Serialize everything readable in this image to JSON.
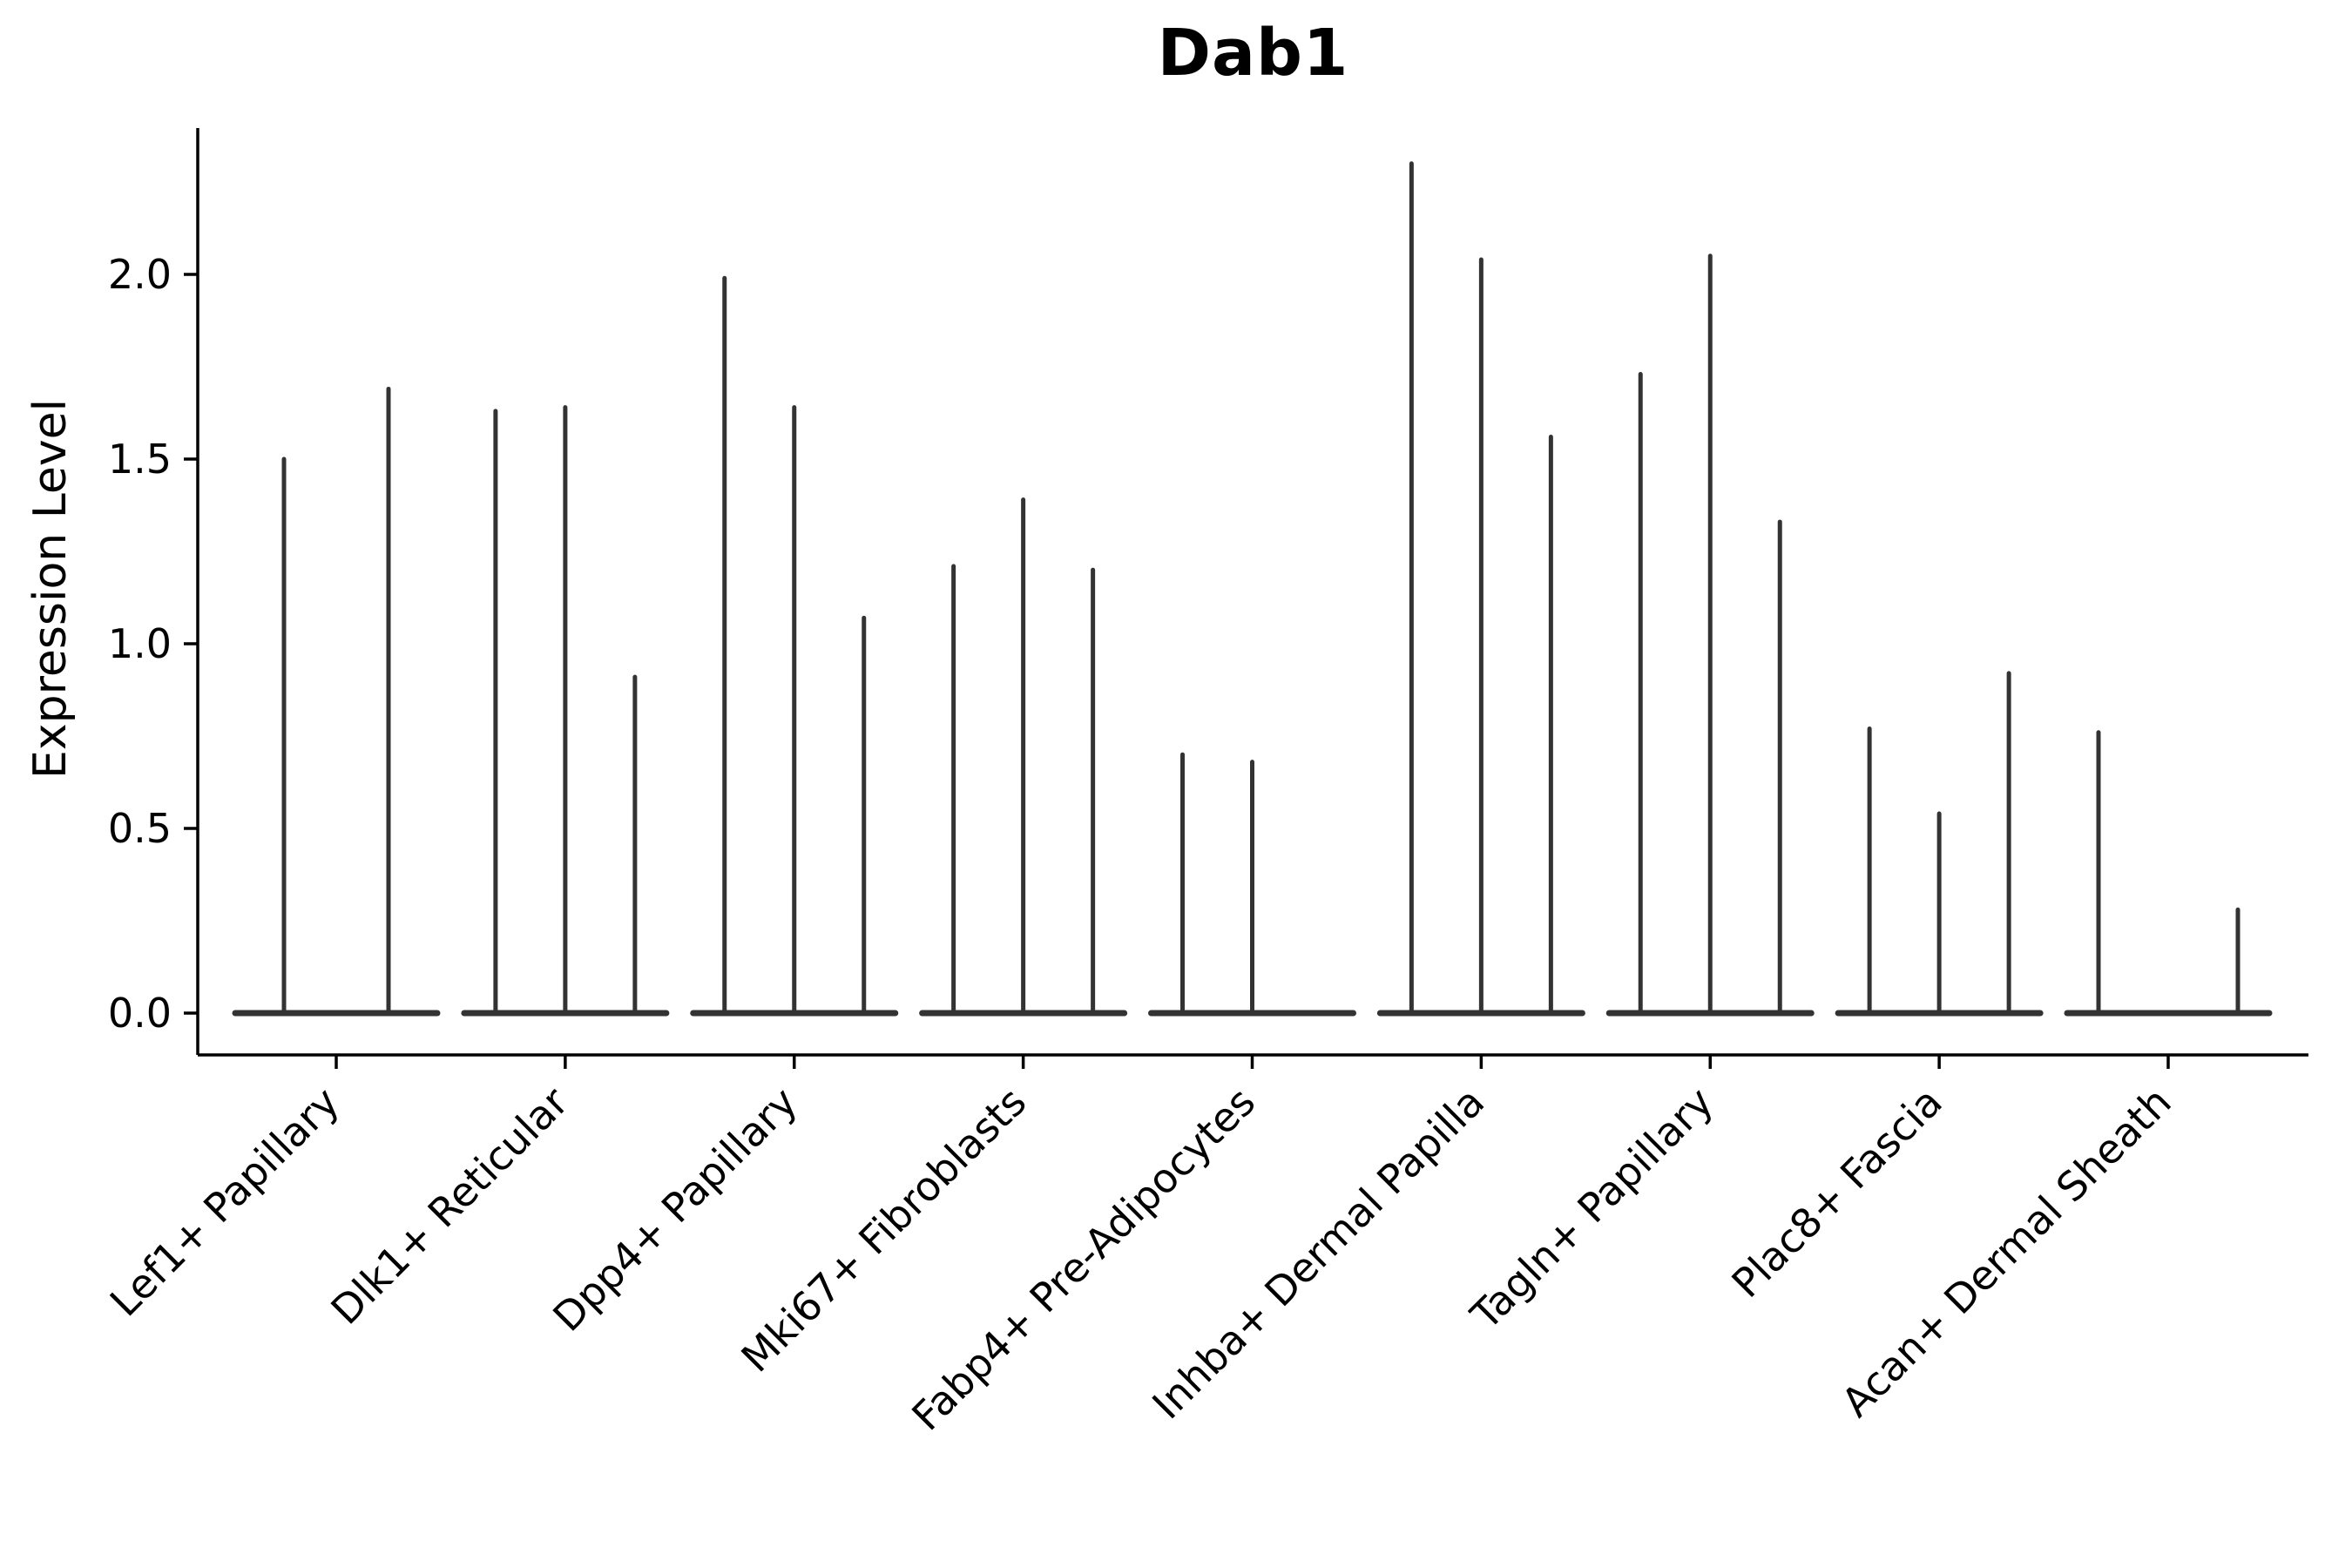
{
  "chart_data": {
    "type": "violin",
    "title": "Dab1",
    "ylabel": "Expression Level",
    "xlabel": "",
    "ytick_values": [
      0.0,
      0.5,
      1.0,
      1.5,
      2.0
    ],
    "ytick_labels": [
      "0.0",
      "0.5",
      "1.0",
      "1.5",
      "2.0"
    ],
    "ylim": [
      -0.11,
      2.4
    ],
    "grid": false,
    "legend": null,
    "violin_color": "#333333",
    "axis_color": "#000000",
    "categories": [
      "Lef1+ Papillary",
      "Dlk1+ Reticular",
      "Dpp4+ Papillary",
      "Mki67+ Fibroblasts",
      "Fabp4+ Pre-Adipocytes",
      "Inhba+ Dermal Papilla",
      "Tagln+ Papillary",
      "Plac8+ Fascia",
      "Acan+ Dermal Sheath"
    ],
    "groups": [
      {
        "category": "Lef1+ Papillary",
        "violin_max_values": [
          1.5,
          1.69
        ]
      },
      {
        "category": "Dlk1+ Reticular",
        "violin_max_values": [
          1.63,
          1.64,
          0.91
        ]
      },
      {
        "category": "Dpp4+ Papillary",
        "violin_max_values": [
          1.99,
          1.64,
          1.07
        ]
      },
      {
        "category": "Mki67+ Fibroblasts",
        "violin_max_values": [
          1.21,
          1.39,
          1.2
        ]
      },
      {
        "category": "Fabp4+ Pre-Adipocytes",
        "violin_max_values": [
          0.7,
          0.68,
          null
        ]
      },
      {
        "category": "Inhba+ Dermal Papilla",
        "violin_max_values": [
          2.3,
          2.04,
          1.56
        ]
      },
      {
        "category": "Tagln+ Papillary",
        "violin_max_values": [
          1.73,
          2.05,
          1.33
        ]
      },
      {
        "category": "Plac8+ Fascia",
        "violin_max_values": [
          0.77,
          0.54,
          0.92
        ]
      },
      {
        "category": "Acan+ Dermal Sheath",
        "violin_max_values": [
          0.76,
          null,
          0.28
        ]
      }
    ]
  }
}
